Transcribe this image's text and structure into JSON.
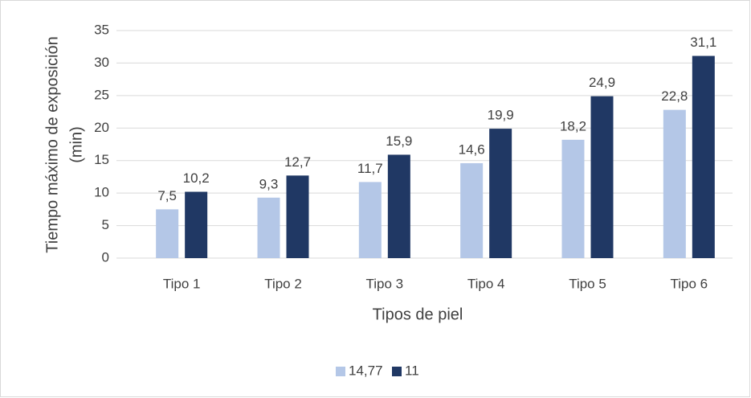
{
  "chart_data": {
    "type": "bar",
    "y_label": [
      "Tiempo máximo de exposición",
      "(min)"
    ],
    "x_label": "Tipos de piel",
    "categories": [
      "Tipo 1",
      "Tipo 2",
      "Tipo 3",
      "Tipo 4",
      "Tipo 5",
      "Tipo 6"
    ],
    "series": [
      {
        "name": "14,77",
        "color": "#b4c7e7",
        "values": [
          7.5,
          9.3,
          11.7,
          14.6,
          18.2,
          22.8
        ],
        "value_labels": [
          "7,5",
          "9,3",
          "11,7",
          "14,6",
          "18,2",
          "22,8"
        ]
      },
      {
        "name": "11",
        "color": "#203864",
        "values": [
          10.2,
          12.7,
          15.9,
          19.9,
          24.9,
          31.1
        ],
        "value_labels": [
          "10,2",
          "12,7",
          "15,9",
          "19,9",
          "24,9",
          "31,1"
        ]
      }
    ],
    "ylim": [
      0,
      35
    ],
    "yticks": [
      0,
      5,
      10,
      15,
      20,
      25,
      30,
      35
    ],
    "grid": true,
    "legend": "bottom"
  }
}
